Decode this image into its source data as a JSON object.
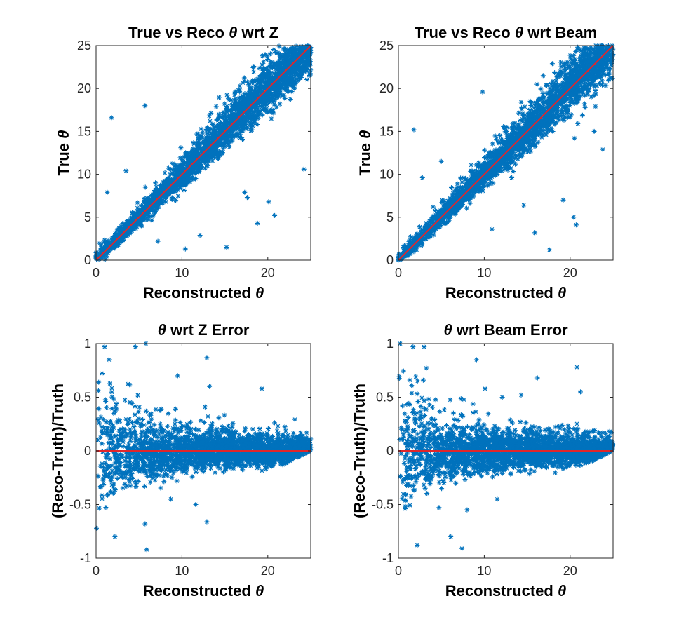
{
  "chart_data": [
    {
      "type": "scatter",
      "title": "True vs Reco θ wrt Z",
      "xlabel": "Reconstructed θ",
      "ylabel": "True θ",
      "xlim": [
        0,
        25
      ],
      "ylim": [
        0,
        25
      ],
      "xticks": [
        "0",
        "10",
        "20"
      ],
      "yticks": [
        "0",
        "5",
        "10",
        "15",
        "20",
        "25"
      ],
      "grid": false,
      "colors": {
        "points": "#0072BD",
        "line": "#e0262b"
      },
      "series": [
        {
          "kind": "points",
          "marker": "*",
          "relation": "true ≈ reconstructed",
          "outliers": [
            [
              5.7,
              18.0
            ],
            [
              1.8,
              16.6
            ],
            [
              3.5,
              10.4
            ],
            [
              24.2,
              10.6
            ],
            [
              20.1,
              6.8
            ],
            [
              17.6,
              7.3
            ],
            [
              18.8,
              4.3
            ],
            [
              10.4,
              1.3
            ],
            [
              17.3,
              7.9
            ],
            [
              7.2,
              2.2
            ],
            [
              12.1,
              2.9
            ],
            [
              15.2,
              1.5
            ],
            [
              20.8,
              5.2
            ],
            [
              1.3,
              7.9
            ]
          ]
        },
        {
          "kind": "line",
          "x": [
            0,
            25
          ],
          "y": [
            0,
            25
          ]
        }
      ]
    },
    {
      "type": "scatter",
      "title": "True vs Reco θ wrt Beam",
      "xlabel": "Reconstructed θ",
      "ylabel": "True θ",
      "xlim": [
        0,
        25
      ],
      "ylim": [
        0,
        25
      ],
      "xticks": [
        "0",
        "10",
        "20"
      ],
      "yticks": [
        "0",
        "5",
        "10",
        "15",
        "20",
        "25"
      ],
      "grid": false,
      "colors": {
        "points": "#0072BD",
        "line": "#e0262b"
      },
      "series": [
        {
          "kind": "points",
          "marker": "*",
          "relation": "true ≈ reconstructed",
          "outliers": [
            [
              9.8,
              19.6
            ],
            [
              1.8,
              15.2
            ],
            [
              22.8,
              15.0
            ],
            [
              23.8,
              12.9
            ],
            [
              20.5,
              14.2
            ],
            [
              2.8,
              9.6
            ],
            [
              20.4,
              5.0
            ],
            [
              20.7,
              4.1
            ],
            [
              17.6,
              1.2
            ],
            [
              14.6,
              6.4
            ],
            [
              19.2,
              7.0
            ],
            [
              10.9,
              3.6
            ],
            [
              13.2,
              9.6
            ],
            [
              20.9,
              15.9
            ],
            [
              5.0,
              11.5
            ],
            [
              15.9,
              3.2
            ]
          ]
        },
        {
          "kind": "line",
          "x": [
            0,
            25
          ],
          "y": [
            0,
            25
          ]
        }
      ]
    },
    {
      "type": "scatter",
      "title": "θ wrt Z Error",
      "xlabel": "Reconstructed θ",
      "ylabel": "(Reco-Truth)/Truth",
      "xlim": [
        0,
        25
      ],
      "ylim": [
        -1,
        1
      ],
      "xticks": [
        "0",
        "10",
        "20"
      ],
      "yticks": [
        "-1",
        "-0.5",
        "0",
        "0.5",
        "1"
      ],
      "grid": false,
      "colors": {
        "points": "#0072BD",
        "line": "#e0262b"
      },
      "series": [
        {
          "kind": "points",
          "marker": "*",
          "relation": "error spread shrinks as reconstructed θ grows",
          "outliers": [
            [
              5.9,
              -0.92
            ],
            [
              5.7,
              -0.68
            ],
            [
              12.9,
              -0.66
            ],
            [
              13.2,
              0.6
            ],
            [
              12.7,
              0.41
            ],
            [
              19.3,
              0.58
            ],
            [
              1.0,
              0.97
            ],
            [
              5.8,
              1.0
            ],
            [
              12.9,
              0.87
            ],
            [
              8.7,
              -0.45
            ],
            [
              2.2,
              -0.8
            ],
            [
              4.6,
              0.97
            ],
            [
              11.6,
              -0.5
            ],
            [
              1.5,
              0.85
            ],
            [
              9.5,
              0.7
            ]
          ]
        },
        {
          "kind": "line",
          "x": [
            0,
            25
          ],
          "y": [
            0,
            0
          ]
        }
      ]
    },
    {
      "type": "scatter",
      "title": "θ wrt Beam Error",
      "xlabel": "Reconstructed θ",
      "ylabel": "(Reco-Truth)/Truth",
      "xlim": [
        0,
        25
      ],
      "ylim": [
        -1,
        1
      ],
      "xticks": [
        "0",
        "10",
        "20"
      ],
      "yticks": [
        "-1",
        "-0.5",
        "0",
        "0.5",
        "1"
      ],
      "grid": false,
      "colors": {
        "points": "#0072BD",
        "line": "#e0262b"
      },
      "series": [
        {
          "kind": "points",
          "marker": "*",
          "relation": "error spread shrinks as reconstructed θ grows",
          "outliers": [
            [
              7.4,
              -0.91
            ],
            [
              2.2,
              -0.88
            ],
            [
              10.1,
              0.58
            ],
            [
              21.2,
              0.55
            ],
            [
              20.8,
              0.78
            ],
            [
              6.1,
              -0.8
            ],
            [
              16.2,
              0.68
            ],
            [
              8.0,
              -0.55
            ],
            [
              12.1,
              0.5
            ],
            [
              3.0,
              0.97
            ],
            [
              1.7,
              0.97
            ],
            [
              9.1,
              0.85
            ],
            [
              14.3,
              0.52
            ],
            [
              11.5,
              -0.45
            ]
          ]
        },
        {
          "kind": "line",
          "x": [
            0,
            25
          ],
          "y": [
            0,
            0
          ]
        }
      ]
    }
  ]
}
